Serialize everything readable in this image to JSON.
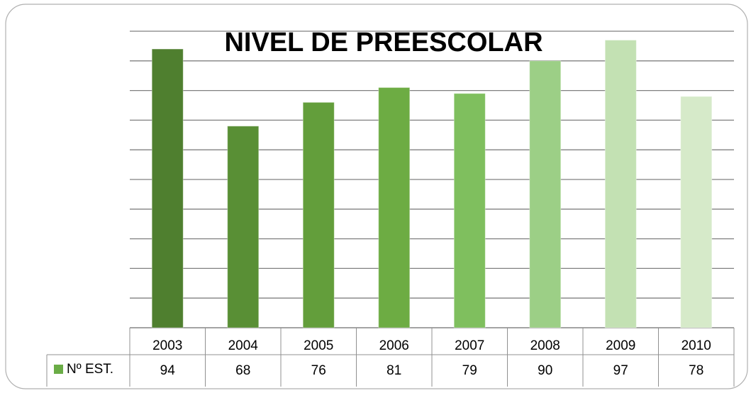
{
  "chart_data": {
    "type": "bar",
    "title": "NIVEL DE PREESCOLAR",
    "categories": [
      "2003",
      "2004",
      "2005",
      "2006",
      "2007",
      "2008",
      "2009",
      "2010"
    ],
    "series": [
      {
        "name": "Nº EST.",
        "color": "#6aac46",
        "values": [
          94,
          68,
          76,
          81,
          79,
          90,
          97,
          78
        ]
      }
    ],
    "colors": [
      "#4f7f2f",
      "#598f35",
      "#639e3b",
      "#6dac43",
      "#7fbf5e",
      "#9ccf86",
      "#c3e1b3",
      "#d6eac9"
    ],
    "ylim": [
      0,
      100
    ],
    "yticks": [
      0,
      10,
      20,
      30,
      40,
      50,
      60,
      70,
      80,
      90,
      100
    ],
    "grid": true
  }
}
